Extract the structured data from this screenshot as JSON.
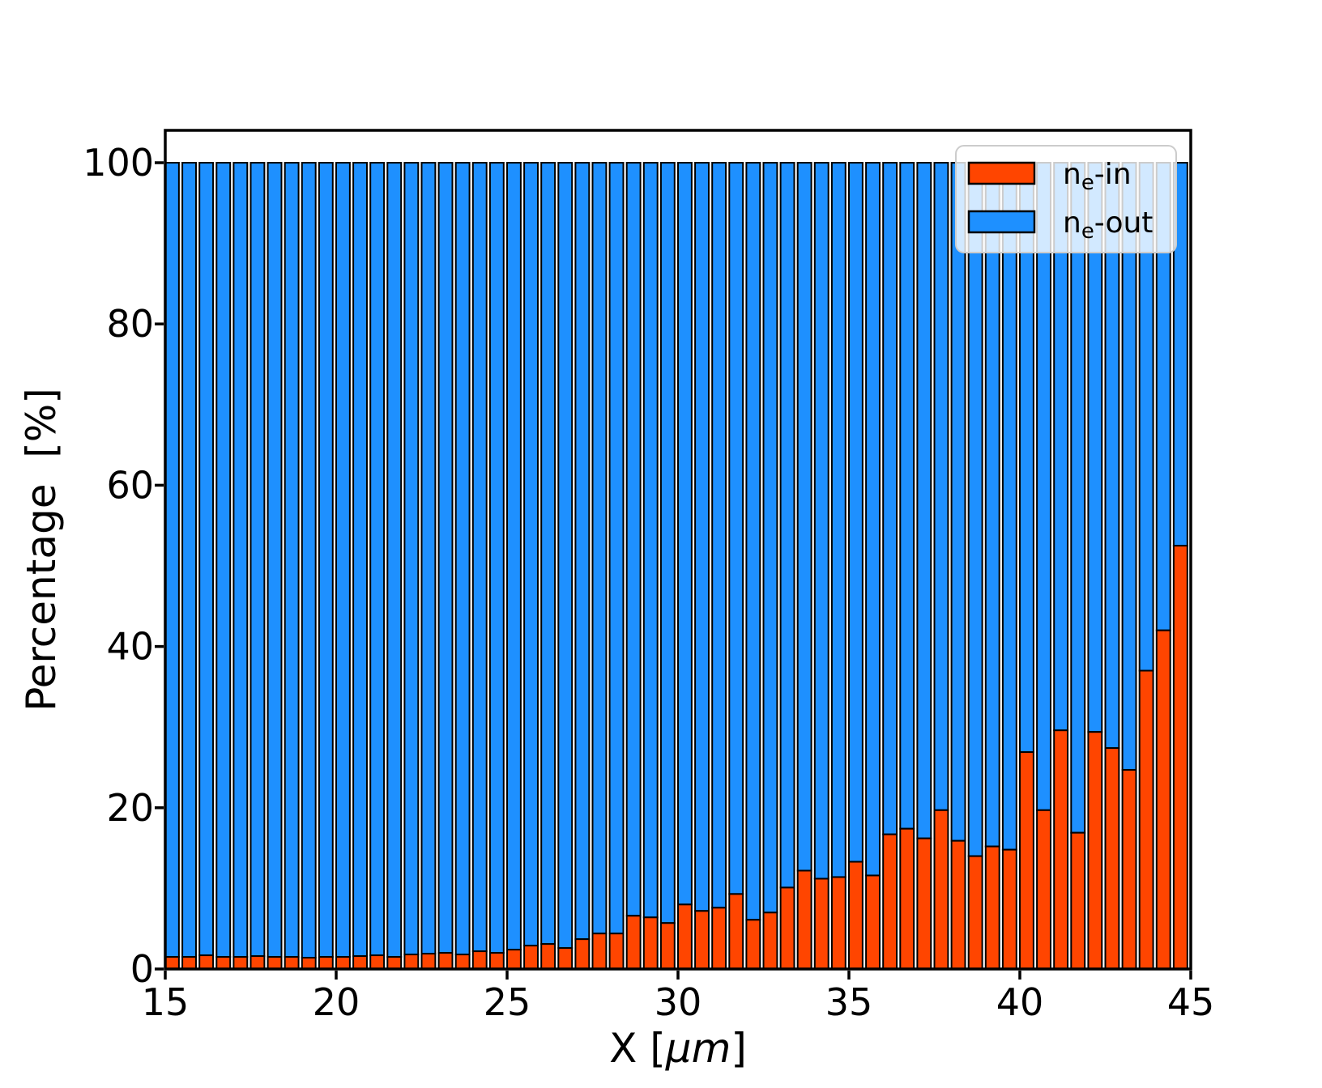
{
  "figure": {
    "background": "#ffffff"
  },
  "chart_data": {
    "type": "bar",
    "stacked": true,
    "title": "",
    "xlabel": {
      "prefix": "X  [",
      "italic": "μm",
      "suffix": "]"
    },
    "ylabel": "Percentage  [%]",
    "xlim": [
      15,
      45
    ],
    "ylim": [
      0,
      104
    ],
    "xticks": [
      15,
      20,
      25,
      30,
      35,
      40,
      45
    ],
    "yticks": [
      0,
      20,
      40,
      60,
      80,
      100
    ],
    "grid": false,
    "bar_slot_um": 0.5,
    "bar_width_um": 0.4,
    "bar_edge_color": "#000000",
    "x": [
      15.0,
      15.5,
      16.0,
      16.5,
      17.0,
      17.5,
      18.0,
      18.5,
      19.0,
      19.5,
      20.0,
      20.5,
      21.0,
      21.5,
      22.0,
      22.5,
      23.0,
      23.5,
      24.0,
      24.5,
      25.0,
      25.5,
      26.0,
      26.5,
      27.0,
      27.5,
      28.0,
      28.5,
      29.0,
      29.5,
      30.0,
      30.5,
      31.0,
      31.5,
      32.0,
      32.5,
      33.0,
      33.5,
      34.0,
      34.5,
      35.0,
      35.5,
      36.0,
      36.5,
      37.0,
      37.5,
      38.0,
      38.5,
      39.0,
      39.5,
      40.0,
      40.5,
      41.0,
      41.5,
      42.0,
      42.5,
      43.0,
      43.5,
      44.0,
      44.5
    ],
    "series": [
      {
        "name": "ne-in",
        "label": {
          "prefix": "n",
          "sub": "e",
          "suffix": "-in"
        },
        "color": "#ff4500",
        "values": [
          1.5,
          1.5,
          1.7,
          1.5,
          1.5,
          1.6,
          1.5,
          1.5,
          1.4,
          1.5,
          1.5,
          1.6,
          1.7,
          1.5,
          1.8,
          1.9,
          2.0,
          1.8,
          2.2,
          2.0,
          2.4,
          2.9,
          3.1,
          2.6,
          3.7,
          4.4,
          4.4,
          6.6,
          6.4,
          5.7,
          8.0,
          7.2,
          7.6,
          9.3,
          6.1,
          7.0,
          10.1,
          12.2,
          11.2,
          11.4,
          13.3,
          11.6,
          16.7,
          17.4,
          16.2,
          19.7,
          15.9,
          14.0,
          15.2,
          14.8,
          26.9,
          19.7,
          29.6,
          16.9,
          29.4,
          27.4,
          24.7,
          37.0,
          42.0,
          52.5
        ]
      },
      {
        "name": "ne-out",
        "label": {
          "prefix": "n",
          "sub": "e",
          "suffix": "-out"
        },
        "color": "#1e90ff",
        "values": [
          98.5,
          98.5,
          98.3,
          98.5,
          98.5,
          98.4,
          98.5,
          98.5,
          98.6,
          98.5,
          98.5,
          98.4,
          98.3,
          98.5,
          98.2,
          98.1,
          98.0,
          98.2,
          97.8,
          98.0,
          97.6,
          97.1,
          96.9,
          97.4,
          96.3,
          95.6,
          95.6,
          93.4,
          93.6,
          94.3,
          92.0,
          92.8,
          92.4,
          90.7,
          93.9,
          93.0,
          89.9,
          87.8,
          88.8,
          88.6,
          86.7,
          88.4,
          83.3,
          82.6,
          83.8,
          80.3,
          84.1,
          86.0,
          84.8,
          85.2,
          73.1,
          80.3,
          70.4,
          83.1,
          70.6,
          72.6,
          75.3,
          63.0,
          58.0,
          47.5
        ]
      }
    ],
    "stack_total": 100,
    "legend": {
      "position": "upper-right",
      "face_color": "rgba(255,255,255,0.8)",
      "edge_color": "#cccccc"
    }
  }
}
